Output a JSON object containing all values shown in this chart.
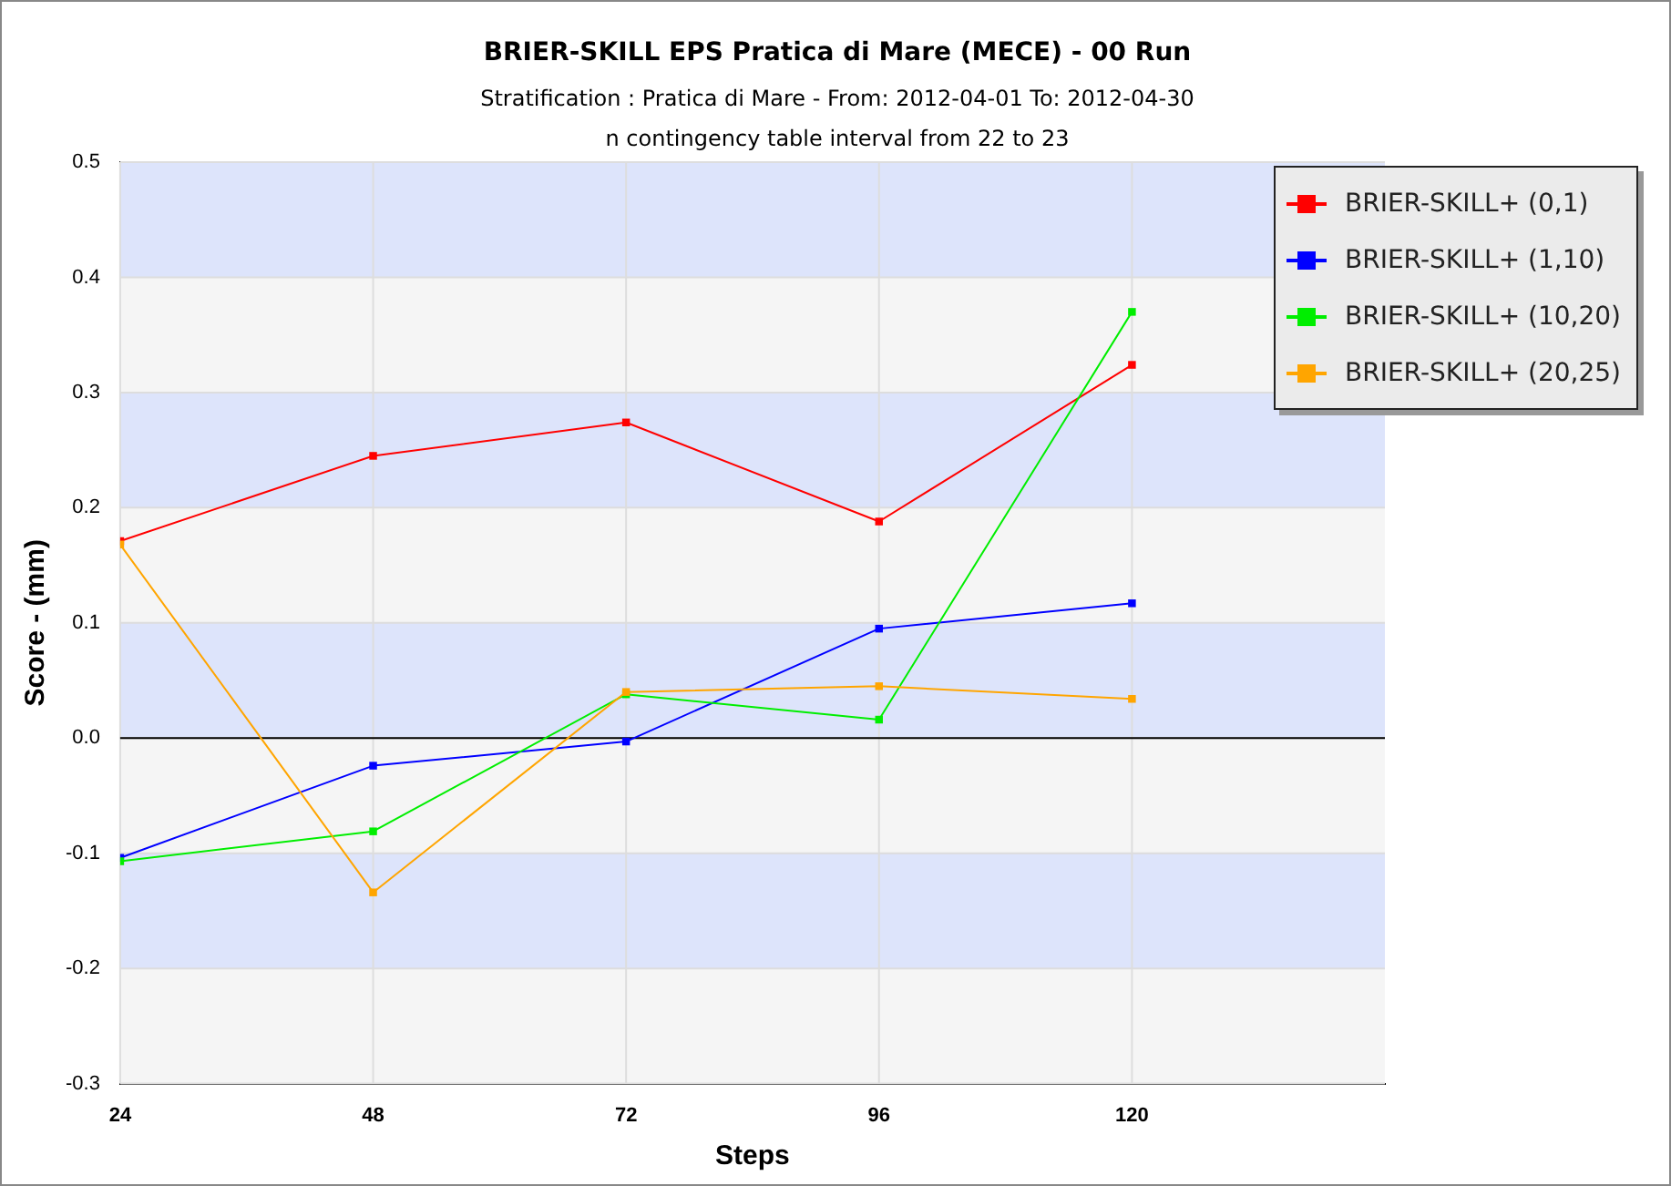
{
  "chart_data": {
    "type": "line",
    "title": "BRIER-SKILL  EPS Pratica di Mare (MECE) - 00 Run",
    "subtitle": "Stratification : Pratica di Mare - From: 2012-04-01 To: 2012-04-30",
    "annotations": [
      "n contingency table interval from 22 to 23"
    ],
    "xlabel": "Steps",
    "ylabel": "Score - (mm)",
    "x": [
      24,
      48,
      72,
      96,
      120
    ],
    "series": [
      {
        "name": "BRIER-SKILL+ (0,1)",
        "color": "#ff0000",
        "values": [
          0.171,
          0.245,
          0.274,
          0.188,
          0.324
        ]
      },
      {
        "name": "BRIER-SKILL+ (1,10)",
        "color": "#0000ff",
        "values": [
          -0.104,
          -0.024,
          -0.003,
          0.095,
          0.117
        ]
      },
      {
        "name": "BRIER-SKILL+ (10,20)",
        "color": "#00ee00",
        "values": [
          -0.107,
          -0.081,
          0.038,
          0.016,
          0.37
        ]
      },
      {
        "name": "BRIER-SKILL+ (20,25)",
        "color": "#ffa500",
        "values": [
          0.168,
          -0.134,
          0.04,
          0.045,
          0.034
        ]
      }
    ],
    "xlim": [
      24,
      144
    ],
    "xticks": [
      24,
      48,
      72,
      96,
      120
    ],
    "ylim": [
      -0.3,
      0.5
    ],
    "yticks": [
      -0.3,
      -0.2,
      -0.1,
      {
        "value": 0,
        "label": "0.0"
      },
      0.1,
      0.2,
      0.3,
      0.4,
      0.5
    ],
    "ref_lines": [
      {
        "axis": "y",
        "value": 0,
        "color": "#000000"
      }
    ],
    "grid": true,
    "legend": "top right",
    "marker": "square",
    "line_style": "solid"
  }
}
